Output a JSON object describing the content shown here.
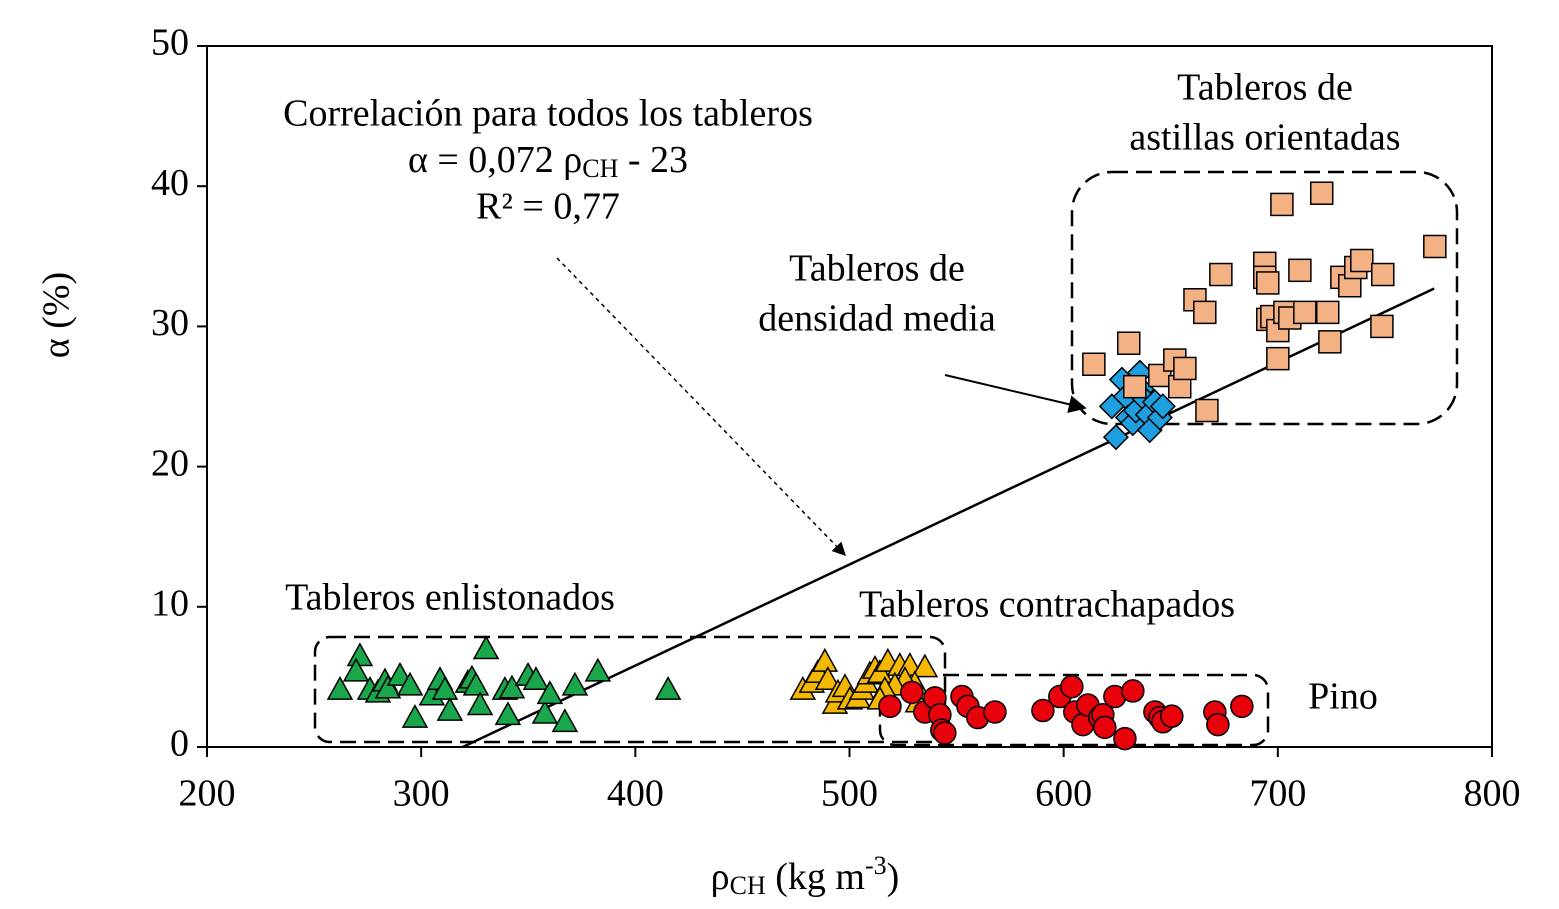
{
  "chart_data": {
    "type": "scatter",
    "xlabel": [
      "ρ",
      "CH",
      "  (kg m",
      "-3",
      ")"
    ],
    "ylabel": "α  (%)",
    "xlim": [
      200,
      800
    ],
    "xticks": [
      200,
      300,
      400,
      500,
      600,
      700,
      800
    ],
    "ylim": [
      0,
      50
    ],
    "yticks": [
      0,
      10,
      20,
      30,
      40,
      50
    ],
    "grid": false,
    "annotations": [
      {
        "lines": [
          "Tableros enlistonados"
        ]
      },
      {
        "lines": [
          "Tableros contrachapados"
        ]
      },
      {
        "lines": [
          "Pino"
        ]
      },
      {
        "lines": [
          "Tableros de",
          "densidad media"
        ]
      },
      {
        "lines": [
          "Tableros de",
          "astillas orientadas"
        ]
      }
    ],
    "correlation": {
      "title": "Correlación para todos los tableros",
      "equation": [
        "α = 0,072 ρ",
        "CH",
        " - 23"
      ],
      "r2": "R² = 0,77"
    },
    "trendline": {
      "x": [
        319.4,
        773
      ],
      "y": [
        0,
        32.7
      ],
      "color": "#000000"
    },
    "series": [
      {
        "marker": "triangle",
        "color": "#1aa64a",
        "x": [
          262.1,
          271.4,
          269.6,
          276.1,
          279.8,
          283.1,
          284.5,
          290.1,
          294.8,
          297.1,
          305.0,
          308.8,
          311.1,
          313.4,
          321.8,
          323.7,
          325.6,
          327.5,
          330.3,
          339.1,
          340.5,
          342.4,
          349.9,
          353.6,
          357.8,
          360.1,
          367.1,
          371.8,
          382.5,
          415.3
        ],
        "values": [
          4.1,
          6.5,
          5.4,
          4.1,
          3.9,
          4.7,
          4.2,
          5.1,
          4.4,
          2.1,
          3.7,
          4.8,
          4.1,
          2.6,
          4.6,
          4.9,
          4.4,
          3.0,
          7.0,
          4.1,
          2.3,
          4.2,
          5.1,
          4.8,
          2.4,
          3.8,
          1.8,
          4.4,
          5.4,
          4.1
        ]
      },
      {
        "marker": "triangle",
        "color": "#f5b800",
        "x": [
          478.2,
          482.4,
          485.2,
          488.5,
          489.9,
          493.2,
          494.6,
          497.9,
          500.2,
          503.9,
          505.8,
          507.7,
          509.5,
          511.9,
          514.2,
          517.9,
          523.5,
          528.2,
          535.2,
          531.9,
          530.5,
          525.9,
          521.2,
          516.5,
          514.2
        ],
        "values": [
          4.1,
          4.6,
          5.3,
          6.1,
          4.8,
          3.1,
          3.9,
          4.3,
          3.4,
          3.5,
          4.1,
          4.6,
          5.2,
          5.6,
          5.3,
          6.1,
          5.8,
          5.8,
          5.7,
          3.2,
          4.5,
          4.8,
          4.4,
          4.1,
          3.4
        ]
      },
      {
        "marker": "circle",
        "color": "#e8000b",
        "x": [
          518.9,
          529.1,
          535.2,
          539.9,
          542.2,
          543.1,
          544.5,
          552.5,
          555.3,
          559.9,
          567.9,
          590.3,
          598.2,
          603.8,
          605.2,
          609.0,
          611.3,
          616.9,
          618.3,
          619.2,
          623.9,
          628.6,
          632.3,
          642.6,
          644.9,
          646.3,
          650.5,
          670.6,
          672.0,
          683.2
        ],
        "values": [
          2.9,
          3.9,
          2.5,
          3.5,
          2.3,
          1.2,
          1.0,
          3.6,
          2.9,
          2.1,
          2.5,
          2.6,
          3.6,
          4.3,
          2.5,
          1.6,
          3.0,
          2.1,
          2.3,
          1.4,
          3.6,
          0.6,
          4.0,
          2.5,
          2.1,
          1.8,
          2.2,
          2.5,
          1.6,
          2.9
        ]
      },
      {
        "marker": "diamond",
        "color": "#1ea0e0",
        "x": [
          622.5,
          624.4,
          627.2,
          629.0,
          630.0,
          632.3,
          633.7,
          635.6,
          636.5,
          637.9,
          639.3,
          640.2,
          642.6,
          644.9,
          646.3
        ],
        "values": [
          24.3,
          22.1,
          26.2,
          25.0,
          23.5,
          23.1,
          24.0,
          26.7,
          25.5,
          24.8,
          23.7,
          22.6,
          24.6,
          23.5,
          24.3
        ]
      },
      {
        "marker": "square",
        "color": "#f4b183",
        "x": [
          614.1,
          630.4,
          633.2,
          644.9,
          651.9,
          654.2,
          656.6,
          666.9,
          661.3,
          665.9,
          673.4,
          693.9,
          693.9,
          695.3,
          695.3,
          697.2,
          700.0,
          700.0,
          701.9,
          703.3,
          705.6,
          710.3,
          712.6,
          720.5,
          723.3,
          724.3,
          729.9,
          733.6,
          736.4,
          739.2,
          748.6,
          749.0,
          773.3
        ],
        "values": [
          27.3,
          28.8,
          25.7,
          26.5,
          27.6,
          25.7,
          27.0,
          24.0,
          31.9,
          31.0,
          33.7,
          34.5,
          33.5,
          33.1,
          30.5,
          30.7,
          29.7,
          27.7,
          38.7,
          31.0,
          30.6,
          34.0,
          31.0,
          39.5,
          31.0,
          28.9,
          33.5,
          32.9,
          34.2,
          34.7,
          30.0,
          33.7,
          35.7
        ]
      }
    ]
  }
}
